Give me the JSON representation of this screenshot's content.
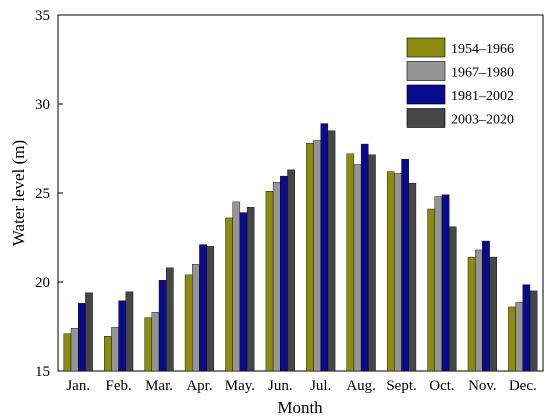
{
  "chart_data": {
    "type": "bar",
    "title": "",
    "xlabel": "Month",
    "ylabel": "Water level (m)",
    "ylim": [
      15,
      35
    ],
    "yticks": [
      15,
      20,
      25,
      30,
      35
    ],
    "grid": false,
    "legend_position": "top-right",
    "categories": [
      "Jan.",
      "Feb.",
      "Mar.",
      "Apr.",
      "May.",
      "Jun.",
      "Jul.",
      "Aug.",
      "Sept.",
      "Oct.",
      "Nov.",
      "Dec."
    ],
    "series": [
      {
        "name": "1954–1966",
        "color": "#8b8b10",
        "values": [
          17.1,
          16.95,
          18.0,
          20.4,
          23.6,
          25.1,
          27.8,
          27.2,
          26.2,
          24.1,
          21.4,
          18.6
        ]
      },
      {
        "name": "1967–1980",
        "color": "#959595",
        "values": [
          17.4,
          17.45,
          18.3,
          21.0,
          24.5,
          25.6,
          27.95,
          26.6,
          26.1,
          24.8,
          21.8,
          18.85
        ]
      },
      {
        "name": "1981–2002",
        "color": "#0a0a8c",
        "values": [
          18.8,
          18.95,
          20.1,
          22.1,
          23.9,
          25.95,
          28.9,
          27.75,
          26.9,
          24.9,
          22.3,
          19.85
        ]
      },
      {
        "name": "2003–2020",
        "color": "#464646",
        "values": [
          19.4,
          19.45,
          20.8,
          22.0,
          24.2,
          26.3,
          28.5,
          27.15,
          25.55,
          23.1,
          21.4,
          19.5
        ]
      }
    ]
  }
}
